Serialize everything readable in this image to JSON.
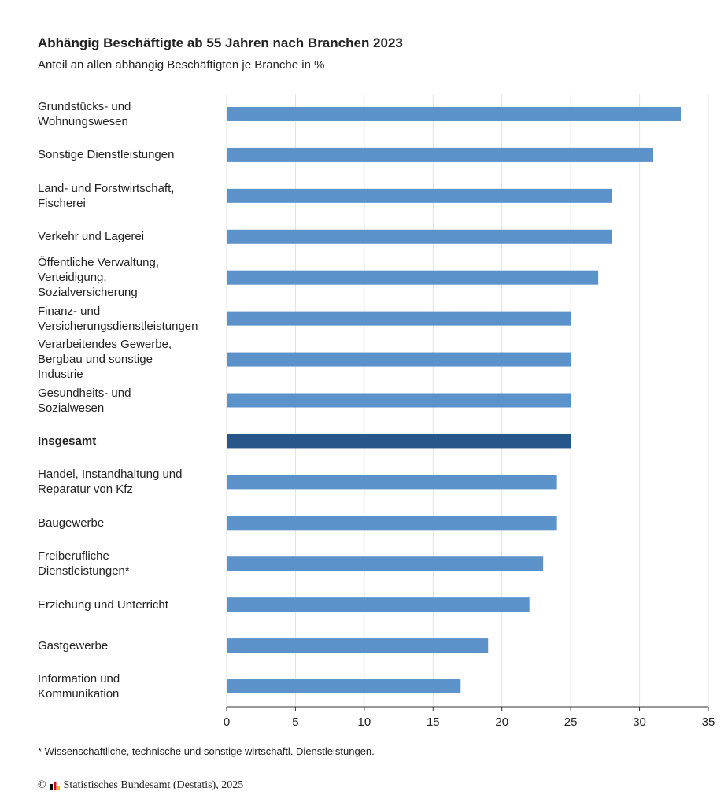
{
  "chart_data": {
    "type": "barh",
    "title": "Abhängig Beschäftigte ab 55 Jahren nach Branchen 2023",
    "subtitle": "Anteil an allen abhängig Beschäftigten je Branche in %",
    "categories": [
      "Grundstücks- und\nWohnungswesen",
      "Sonstige Dienstleistungen",
      "Land- und Forstwirtschaft,\nFischerei",
      "Verkehr und Lagerei",
      "Öffentliche Verwaltung,\nVerteidigung,\nSozialversicherung",
      "Finanz- und\nVersicherungsdienstleistungen",
      "Verarbeitendes Gewerbe,\nBergbau und sonstige\nIndustrie",
      "Gesundheits- und\nSozialwesen",
      "Insgesamt",
      "Handel, Instandhaltung und\nReparatur von Kfz",
      "Baugewerbe",
      "Freiberufliche\nDienstleistungen*",
      "Erziehung und Unterricht",
      "Gastgewerbe",
      "Information und\nKommunikation"
    ],
    "values": [
      33,
      31,
      28,
      28,
      27,
      25,
      25,
      25,
      25,
      24,
      24,
      23,
      22,
      19,
      17
    ],
    "colors": [
      "#5b92c9",
      "#5b92c9",
      "#5b92c9",
      "#5b92c9",
      "#5b92c9",
      "#5b92c9",
      "#5b92c9",
      "#5b92c9",
      "#27568a",
      "#5b92c9",
      "#5b92c9",
      "#5b92c9",
      "#5b92c9",
      "#5b92c9",
      "#5b92c9"
    ],
    "xlim": [
      0,
      35
    ],
    "xticks": [
      0,
      5,
      10,
      15,
      20,
      25,
      30,
      35
    ],
    "grid": true,
    "footnote": "* Wissenschaftliche, technische und sonstige wirtschaftl. Dienstleistungen.",
    "source": "Statistisches Bundesamt (Destatis), 2025"
  }
}
